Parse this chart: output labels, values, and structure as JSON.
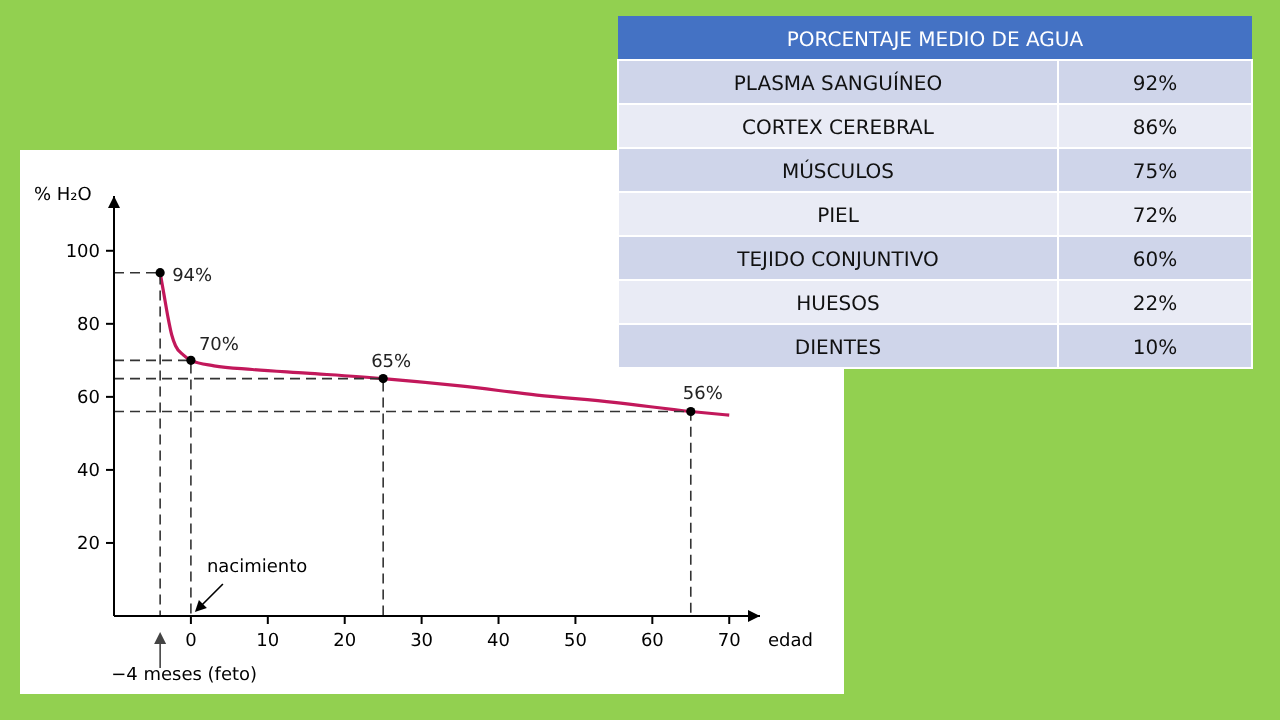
{
  "chart_data": [
    {
      "type": "line",
      "ylabel": "% H₂O",
      "xlabel": "edad",
      "xlim": [
        -10,
        74
      ],
      "ylim": [
        0,
        115
      ],
      "xticks": [
        0,
        10,
        20,
        30,
        40,
        50,
        60,
        70
      ],
      "yticks": [
        20,
        40,
        60,
        80,
        100
      ],
      "grid": false,
      "series": [
        {
          "type": "line",
          "color": "#c2185b",
          "marker": "none",
          "x": [
            -4,
            -3.5,
            -3,
            -2.5,
            -2,
            -1,
            0,
            3,
            8,
            15,
            25,
            35,
            45,
            55,
            65,
            70
          ],
          "values": [
            94,
            88,
            82,
            77,
            74,
            71.5,
            70,
            68.5,
            67.5,
            66.5,
            65,
            63,
            60.5,
            58.5,
            56,
            55
          ]
        },
        {
          "type": "line",
          "color": "#333333",
          "marker": "none",
          "line_style": "dashed",
          "x": [
            -10,
            -4,
            -4
          ],
          "values": [
            94,
            94,
            0
          ]
        },
        {
          "type": "line",
          "color": "#333333",
          "marker": "none",
          "line_style": "dashed",
          "x": [
            -10,
            0,
            0
          ],
          "values": [
            70,
            70,
            0
          ]
        },
        {
          "type": "line",
          "color": "#333333",
          "marker": "none",
          "line_style": "dashed",
          "x": [
            -10,
            25,
            25
          ],
          "values": [
            65,
            65,
            0
          ]
        },
        {
          "type": "line",
          "color": "#333333",
          "marker": "none",
          "line_style": "dashed",
          "x": [
            -10,
            65,
            65
          ],
          "values": [
            56,
            56,
            0
          ]
        },
        {
          "type": "scatter",
          "color": "#000000",
          "marker": "circle",
          "x": [
            -4,
            0,
            25,
            65
          ],
          "values": [
            94,
            70,
            65,
            56
          ],
          "value_labels": [
            "94%",
            "70%",
            "65%",
            "56%"
          ]
        }
      ],
      "annotations": [
        "nacimiento",
        "−4 meses (feto)"
      ]
    },
    {
      "type": "other",
      "title": "PORCENTAJE MEDIO DE AGUA",
      "categories": [
        "PLASMA SANGUÍNEO",
        "CORTEX CEREBRAL",
        "MÚSCULOS",
        "PIEL",
        "TEJIDO CONJUNTIVO",
        "HUESOS",
        "DIENTES"
      ],
      "value_labels": [
        "92%",
        "86%",
        "75%",
        "72%",
        "60%",
        "22%",
        "10%"
      ]
    }
  ]
}
